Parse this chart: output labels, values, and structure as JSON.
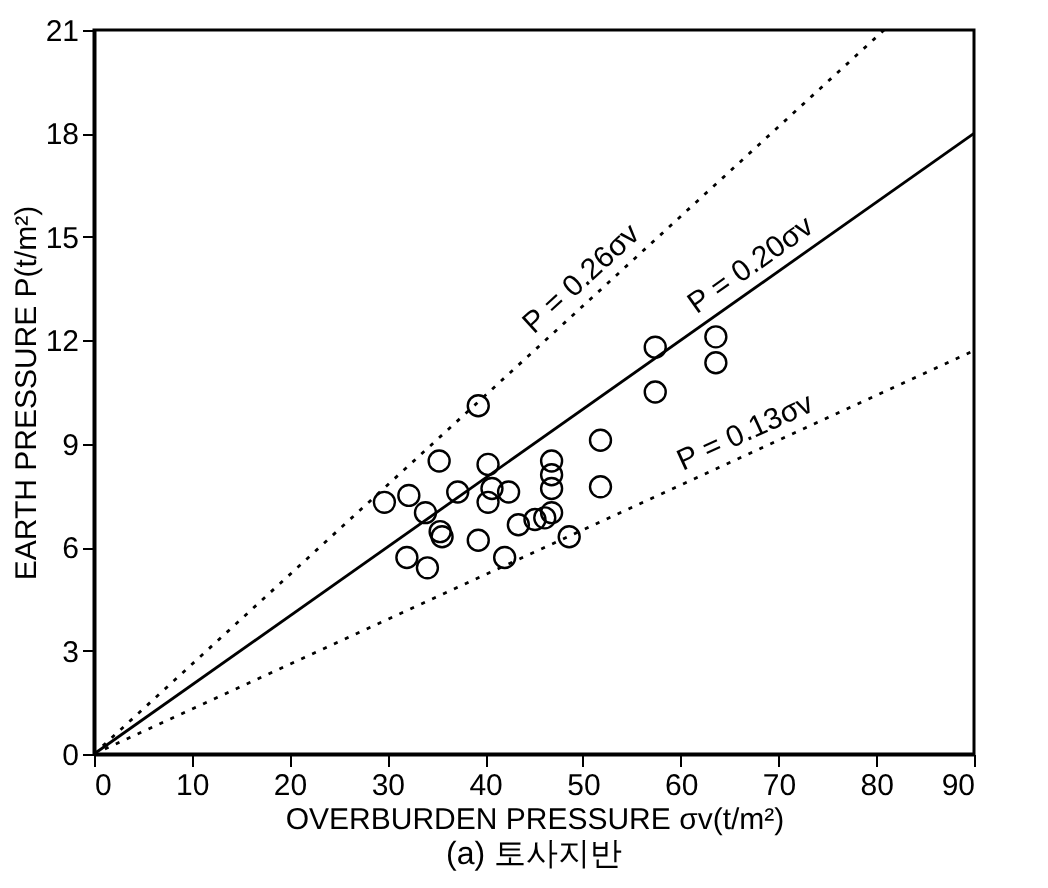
{
  "chart_data": {
    "type": "scatter",
    "title": "(a) 토사지반",
    "xlabel": "OVERBURDEN PRESSURE σv(t/m²)",
    "ylabel": "EARTH PRESSURE P(t/m²)",
    "xlim": [
      0,
      90
    ],
    "xticks": [
      0,
      10,
      20,
      30,
      40,
      50,
      60,
      70,
      80,
      90
    ],
    "ylim": [
      0,
      21
    ],
    "yticks": [
      0,
      3,
      6,
      9,
      12,
      15,
      18,
      21
    ],
    "grid": false,
    "series": [
      {
        "marker": "circle",
        "color": "#000000",
        "x": [
          29.7,
          32.2,
          33.9,
          32.0,
          34.1,
          35.3,
          35.4,
          35.6,
          37.2,
          39.3,
          39.3,
          40.3,
          40.3,
          40.7,
          42.4,
          42.0,
          43.4,
          45.1,
          46.1,
          46.8,
          46.8,
          46.8,
          46.8,
          48.6,
          51.8,
          51.8,
          57.4,
          57.4,
          63.6,
          63.6
        ],
        "values": [
          7.3,
          7.5,
          7.0,
          5.7,
          5.4,
          8.5,
          6.45,
          6.3,
          7.6,
          10.1,
          6.2,
          8.4,
          7.3,
          7.7,
          7.6,
          5.7,
          6.65,
          6.8,
          6.85,
          8.5,
          8.1,
          7.7,
          7.0,
          6.3,
          9.1,
          7.75,
          11.8,
          10.5,
          12.1,
          11.35
        ]
      },
      {
        "type": "line",
        "color": "#000000",
        "line_style": "dotted",
        "x": [
          0,
          80.8
        ],
        "values": [
          0,
          21
        ]
      },
      {
        "type": "line",
        "color": "#000000",
        "line_style": "solid",
        "x": [
          0,
          90
        ],
        "values": [
          0,
          18
        ]
      },
      {
        "type": "line",
        "color": "#000000",
        "line_style": "dotted",
        "x": [
          0,
          90
        ],
        "values": [
          0,
          11.7
        ]
      }
    ],
    "annotations": [
      "P = 0.26σv",
      "P = 0.20σv",
      "P = 0.13σv"
    ]
  }
}
